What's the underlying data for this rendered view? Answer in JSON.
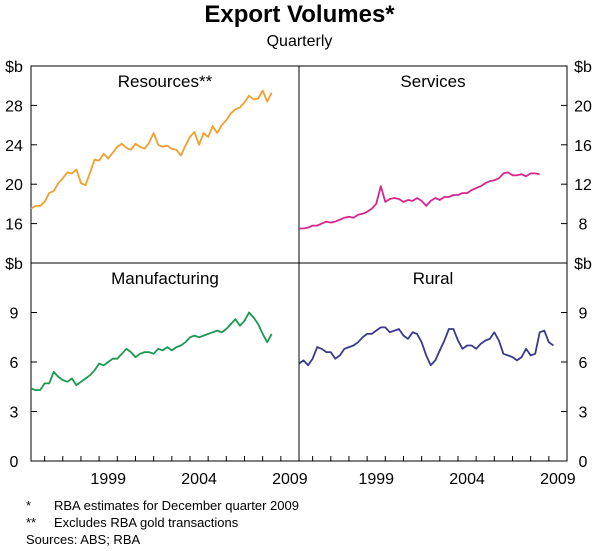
{
  "title": "Export Volumes*",
  "subtitle": "Quarterly",
  "notes": [
    {
      "mark": "*",
      "text": "RBA estimates for December quarter 2009"
    },
    {
      "mark": "**",
      "text": "Excludes RBA gold transactions"
    }
  ],
  "sources": "Sources: ABS; RBA",
  "colors": {
    "resources": "#f0a030",
    "services": "#d6268e",
    "manufacturing": "#1a9a50",
    "rural": "#3a3a8c"
  },
  "chart_data": [
    {
      "type": "line",
      "name": "Resources**",
      "unit": "$b",
      "ylim": [
        12,
        32
      ],
      "yticks": [
        "16",
        "20",
        "24",
        "28"
      ],
      "xlim": [
        1995.25,
        2010.0
      ],
      "xticks": [
        "1999",
        "2004",
        "2009"
      ],
      "x_start": 1995.25,
      "x_step": 0.25,
      "values": [
        17.5,
        17.8,
        17.8,
        18.2,
        19.1,
        19.3,
        20.1,
        20.6,
        21.2,
        21.1,
        21.5,
        20.1,
        19.9,
        21.2,
        22.5,
        22.4,
        23.1,
        22.6,
        23.2,
        23.8,
        24.1,
        23.7,
        23.5,
        24.1,
        23.8,
        23.6,
        24.2,
        25.2,
        24.0,
        23.8,
        23.9,
        23.6,
        23.5,
        22.9,
        23.9,
        24.8,
        25.3,
        24.0,
        25.2,
        24.8,
        25.9,
        25.2,
        26.0,
        26.5,
        27.2,
        27.6,
        27.8,
        28.3,
        29.0,
        28.6,
        28.7,
        29.5,
        28.4,
        29.3
      ]
    },
    {
      "type": "line",
      "name": "Services",
      "unit": "$b",
      "ylim": [
        4,
        24
      ],
      "yticks": [
        "8",
        "12",
        "16",
        "20"
      ],
      "xlim": [
        1995.25,
        2010.0
      ],
      "xticks": [
        "1999",
        "2004",
        "2009"
      ],
      "x_start": 1995.25,
      "x_step": 0.25,
      "values": [
        7.5,
        7.5,
        7.6,
        7.8,
        7.8,
        8.0,
        8.2,
        8.1,
        8.2,
        8.4,
        8.6,
        8.7,
        8.6,
        8.9,
        9.0,
        9.2,
        9.5,
        10.0,
        11.8,
        10.2,
        10.5,
        10.6,
        10.5,
        10.2,
        10.4,
        10.3,
        10.6,
        10.3,
        9.8,
        10.3,
        10.6,
        10.4,
        10.7,
        10.7,
        10.9,
        10.9,
        11.1,
        11.1,
        11.4,
        11.6,
        11.8,
        12.1,
        12.3,
        12.4,
        12.6,
        13.1,
        13.2,
        12.9,
        12.9,
        13.0,
        12.8,
        13.1,
        13.1,
        13.0
      ]
    },
    {
      "type": "line",
      "name": "Manufacturing",
      "unit": "$b",
      "ylim": [
        0,
        12
      ],
      "yticks": [
        "0",
        "3",
        "6",
        "9"
      ],
      "xlim": [
        1995.25,
        2010.0
      ],
      "xticks": [
        "1999",
        "2004",
        "2009"
      ],
      "x_start": 1995.25,
      "x_step": 0.25,
      "values": [
        4.4,
        4.3,
        4.3,
        4.7,
        4.7,
        5.4,
        5.1,
        4.9,
        4.8,
        5.0,
        4.6,
        4.8,
        5.0,
        5.2,
        5.5,
        5.9,
        5.8,
        6.0,
        6.2,
        6.2,
        6.5,
        6.8,
        6.6,
        6.3,
        6.5,
        6.6,
        6.6,
        6.5,
        6.8,
        6.7,
        6.9,
        6.7,
        6.9,
        7.0,
        7.2,
        7.5,
        7.6,
        7.5,
        7.6,
        7.7,
        7.8,
        7.9,
        7.8,
        8.0,
        8.3,
        8.6,
        8.2,
        8.5,
        9.0,
        8.7,
        8.3,
        7.7,
        7.2,
        7.7
      ]
    },
    {
      "type": "line",
      "name": "Rural",
      "unit": "$b",
      "ylim": [
        0,
        12
      ],
      "yticks": [
        "0",
        "3",
        "6",
        "9"
      ],
      "xlim": [
        1995.25,
        2010.0
      ],
      "xticks": [
        "1999",
        "2004",
        "2009"
      ],
      "x_start": 1995.25,
      "x_step": 0.25,
      "values": [
        5.9,
        6.1,
        5.8,
        6.2,
        6.9,
        6.8,
        6.6,
        6.6,
        6.2,
        6.4,
        6.8,
        6.9,
        7.0,
        7.2,
        7.5,
        7.7,
        7.7,
        7.9,
        8.1,
        8.1,
        7.8,
        7.9,
        8.0,
        7.6,
        7.4,
        7.8,
        7.7,
        7.2,
        6.4,
        5.8,
        6.1,
        6.7,
        7.3,
        8.0,
        8.0,
        7.3,
        6.8,
        7.0,
        7.0,
        6.8,
        7.1,
        7.3,
        7.4,
        7.8,
        7.3,
        6.5,
        6.4,
        6.3,
        6.1,
        6.3,
        6.8,
        6.4,
        6.5,
        7.8,
        7.9,
        7.2,
        7.0
      ]
    }
  ]
}
